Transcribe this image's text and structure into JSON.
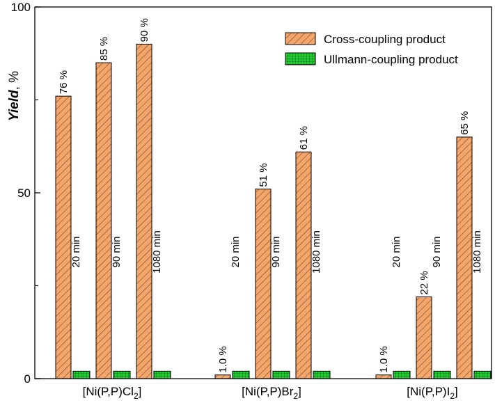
{
  "chart_data": {
    "type": "bar",
    "title": "",
    "ylabel": "Yield",
    "ylabel_unit": ", %",
    "ylim": [
      0,
      100
    ],
    "yticks": [
      "0",
      "50",
      "100"
    ],
    "categories": [
      {
        "base": "[Ni(P,P)",
        "halide": "Cl",
        "sub": "2",
        "close": "]"
      },
      {
        "base": "[Ni(P,P)",
        "halide": "Br",
        "sub": "2",
        "close": "]"
      },
      {
        "base": "[Ni(P,P)",
        "halide": "I",
        "sub": "2",
        "close": "]"
      }
    ],
    "times": [
      "20 min",
      "90 min",
      "1080 min"
    ],
    "series": [
      {
        "name": "Cross-coupling product",
        "color": "#f4a56a",
        "values": [
          [
            76,
            85,
            90
          ],
          [
            1.0,
            51,
            61
          ],
          [
            1.0,
            22,
            65
          ]
        ],
        "labels": [
          [
            "76 %",
            "85 %",
            "90 %"
          ],
          [
            "1.0 %",
            "51 %",
            "61 %"
          ],
          [
            "1.0 %",
            "22 %",
            "65 %"
          ]
        ]
      },
      {
        "name": "Ullmann-coupling product",
        "color": "#22cc33",
        "values": [
          [
            2,
            2,
            2
          ],
          [
            2,
            2,
            2
          ],
          [
            2,
            2,
            2
          ]
        ]
      }
    ],
    "legend_position": "top-right"
  }
}
